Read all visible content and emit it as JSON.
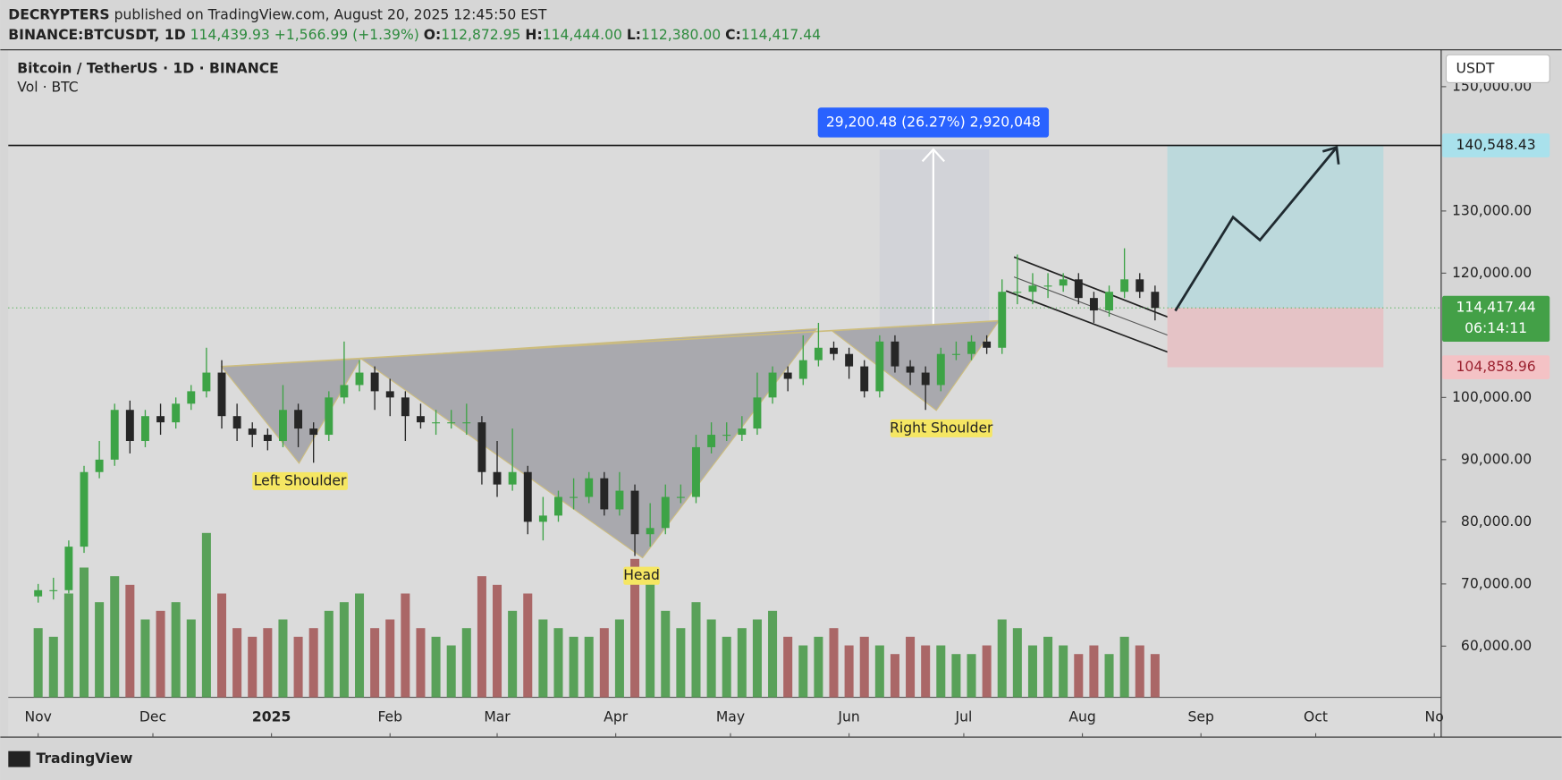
{
  "header": {
    "author": "DECRYPTERS",
    "published": "published on TradingView.com, August 20, 2025 12:45:50 EST",
    "symbol": "BINANCE:BTCUSDT, 1D",
    "price": "114,439.93",
    "change": "+1,566.99 (+1.39%)",
    "o_key": "O:",
    "o": "112,872.95",
    "h_key": "H:",
    "h": "114,444.00",
    "l_key": "L:",
    "l": "112,380.00",
    "c_key": "C:",
    "c": "114,417.44"
  },
  "chart_data": {
    "type": "candlestick",
    "title": "Bitcoin / TetherUS · 1D · BINANCE",
    "subtitle": "Vol · BTC",
    "currency": "USDT",
    "brand": "TradingView",
    "up_color": "#3da346",
    "down_color": "#262626",
    "volume_up_color": "#4a9a4a",
    "volume_down_color": "#a45a5a",
    "candles": [
      [
        68000,
        70000,
        67000,
        69000
      ],
      [
        69000,
        71000,
        67500,
        69000
      ],
      [
        69000,
        77000,
        68500,
        76000
      ],
      [
        76000,
        89000,
        75000,
        88000
      ],
      [
        88000,
        93000,
        87000,
        90000
      ],
      [
        90000,
        99000,
        89000,
        98000
      ],
      [
        98000,
        99500,
        91000,
        93000
      ],
      [
        93000,
        98000,
        92000,
        97000
      ],
      [
        97000,
        99000,
        94000,
        96000
      ],
      [
        96000,
        100000,
        95000,
        99000
      ],
      [
        99000,
        102000,
        98000,
        101000
      ],
      [
        101000,
        108000,
        100000,
        104000
      ],
      [
        104000,
        106000,
        95000,
        97000
      ],
      [
        97000,
        99000,
        93000,
        95000
      ],
      [
        95000,
        96000,
        92000,
        94000
      ],
      [
        94000,
        95000,
        91500,
        93000
      ],
      [
        93000,
        102000,
        92000,
        98000
      ],
      [
        98000,
        99000,
        92000,
        95000
      ],
      [
        95000,
        96000,
        89500,
        94000
      ],
      [
        94000,
        101000,
        93000,
        100000
      ],
      [
        100000,
        109000,
        99000,
        102000
      ],
      [
        102000,
        106000,
        101000,
        104000
      ],
      [
        104000,
        105000,
        98000,
        101000
      ],
      [
        101000,
        103000,
        97000,
        100000
      ],
      [
        100000,
        101000,
        93000,
        97000
      ],
      [
        97000,
        99000,
        95000,
        96000
      ],
      [
        96000,
        98000,
        94000,
        96000
      ],
      [
        96000,
        98000,
        95000,
        96000
      ],
      [
        96000,
        99000,
        94000,
        96000
      ],
      [
        96000,
        97000,
        86000,
        88000
      ],
      [
        88000,
        93000,
        84000,
        86000
      ],
      [
        86000,
        95000,
        85000,
        88000
      ],
      [
        88000,
        89000,
        78000,
        80000
      ],
      [
        80000,
        84000,
        77000,
        81000
      ],
      [
        81000,
        85000,
        80000,
        84000
      ],
      [
        84000,
        87000,
        82000,
        84000
      ],
      [
        84000,
        88000,
        83000,
        87000
      ],
      [
        87000,
        88000,
        81000,
        82000
      ],
      [
        82000,
        88000,
        81000,
        85000
      ],
      [
        85000,
        86000,
        74500,
        78000
      ],
      [
        78000,
        83000,
        76000,
        79000
      ],
      [
        79000,
        86000,
        78000,
        84000
      ],
      [
        84000,
        86000,
        83000,
        84000
      ],
      [
        84000,
        94000,
        83000,
        92000
      ],
      [
        92000,
        96000,
        91000,
        94000
      ],
      [
        94000,
        96000,
        93000,
        94000
      ],
      [
        94000,
        97000,
        93000,
        95000
      ],
      [
        95000,
        104000,
        94000,
        100000
      ],
      [
        100000,
        105000,
        99000,
        104000
      ],
      [
        104000,
        105000,
        101000,
        103000
      ],
      [
        103000,
        110000,
        102000,
        106000
      ],
      [
        106000,
        112000,
        105000,
        108000
      ],
      [
        108000,
        109000,
        106000,
        107000
      ],
      [
        107000,
        108000,
        103000,
        105000
      ],
      [
        105000,
        106000,
        100000,
        101000
      ],
      [
        101000,
        110000,
        100000,
        109000
      ],
      [
        109000,
        110000,
        104000,
        105000
      ],
      [
        105000,
        106000,
        102000,
        104000
      ],
      [
        104000,
        105000,
        98000,
        102000
      ],
      [
        102000,
        108000,
        101000,
        107000
      ],
      [
        107000,
        109000,
        106000,
        107000
      ],
      [
        107000,
        110000,
        106000,
        109000
      ],
      [
        109000,
        110000,
        107000,
        108000
      ],
      [
        108000,
        119000,
        107000,
        117000
      ],
      [
        117000,
        123000,
        115000,
        117000
      ],
      [
        117000,
        120000,
        115000,
        118000
      ],
      [
        118000,
        120000,
        116000,
        118000
      ],
      [
        118000,
        120000,
        117000,
        119000
      ],
      [
        119000,
        120000,
        115000,
        116000
      ],
      [
        116000,
        117000,
        112000,
        114000
      ],
      [
        114000,
        118000,
        113000,
        117000
      ],
      [
        117000,
        124000,
        116000,
        119000
      ],
      [
        119000,
        120000,
        116000,
        117000
      ],
      [
        117000,
        118000,
        112400,
        114400
      ]
    ],
    "volumes": [
      40,
      35,
      60,
      75,
      55,
      70,
      65,
      45,
      50,
      55,
      45,
      95,
      60,
      40,
      35,
      40,
      45,
      35,
      40,
      50,
      55,
      60,
      40,
      45,
      60,
      40,
      35,
      30,
      40,
      70,
      65,
      50,
      60,
      45,
      40,
      35,
      35,
      40,
      45,
      80,
      75,
      50,
      40,
      55,
      45,
      35,
      40,
      45,
      50,
      35,
      30,
      35,
      40,
      30,
      35,
      30,
      25,
      35,
      30,
      30,
      25,
      25,
      30,
      45,
      40,
      30,
      35,
      30,
      25,
      30,
      25,
      35,
      30,
      25
    ],
    "xlim": [
      -1.95,
      91.7
    ],
    "xticks": [
      {
        "value": 0,
        "label": "Nov"
      },
      {
        "value": 7.5,
        "label": "Dec"
      },
      {
        "value": 15.25,
        "label": "2025"
      },
      {
        "value": 23,
        "label": "Feb"
      },
      {
        "value": 30,
        "label": "Mar"
      },
      {
        "value": 37.75,
        "label": "Apr"
      },
      {
        "value": 45.25,
        "label": "May"
      },
      {
        "value": 53,
        "label": "Jun"
      },
      {
        "value": 60.5,
        "label": "Jul"
      },
      {
        "value": 68.25,
        "label": "Aug"
      },
      {
        "value": 76,
        "label": "Sep"
      },
      {
        "value": 83.5,
        "label": "Oct"
      },
      {
        "value": 91.25,
        "label": "No"
      }
    ],
    "ylim": [
      51763,
      155929
    ],
    "yticks": [
      {
        "value": 60000,
        "label": "60,000.00"
      },
      {
        "value": 70000,
        "label": "70,000.00"
      },
      {
        "value": 80000,
        "label": "80,000.00"
      },
      {
        "value": 90000,
        "label": "90,000.00"
      },
      {
        "value": 100000,
        "label": "100,000.00"
      },
      {
        "value": 120000,
        "label": "120,000.00"
      },
      {
        "value": 130000,
        "label": "130,000.00"
      },
      {
        "value": 150000,
        "label": "150,000.00"
      }
    ],
    "target": {
      "value": 140548.43,
      "label": "140,548.43"
    },
    "last_price": {
      "value": 114417.44,
      "label": "114,417.44"
    },
    "countdown": "06:14:11",
    "stop": {
      "value": 104858.96,
      "label": "104,858.96"
    },
    "measure_label": "29,200.48 (26.27%) 2,920,048",
    "annotations": [
      "Left Shoulder",
      "Head",
      "Right Shoulder"
    ]
  }
}
